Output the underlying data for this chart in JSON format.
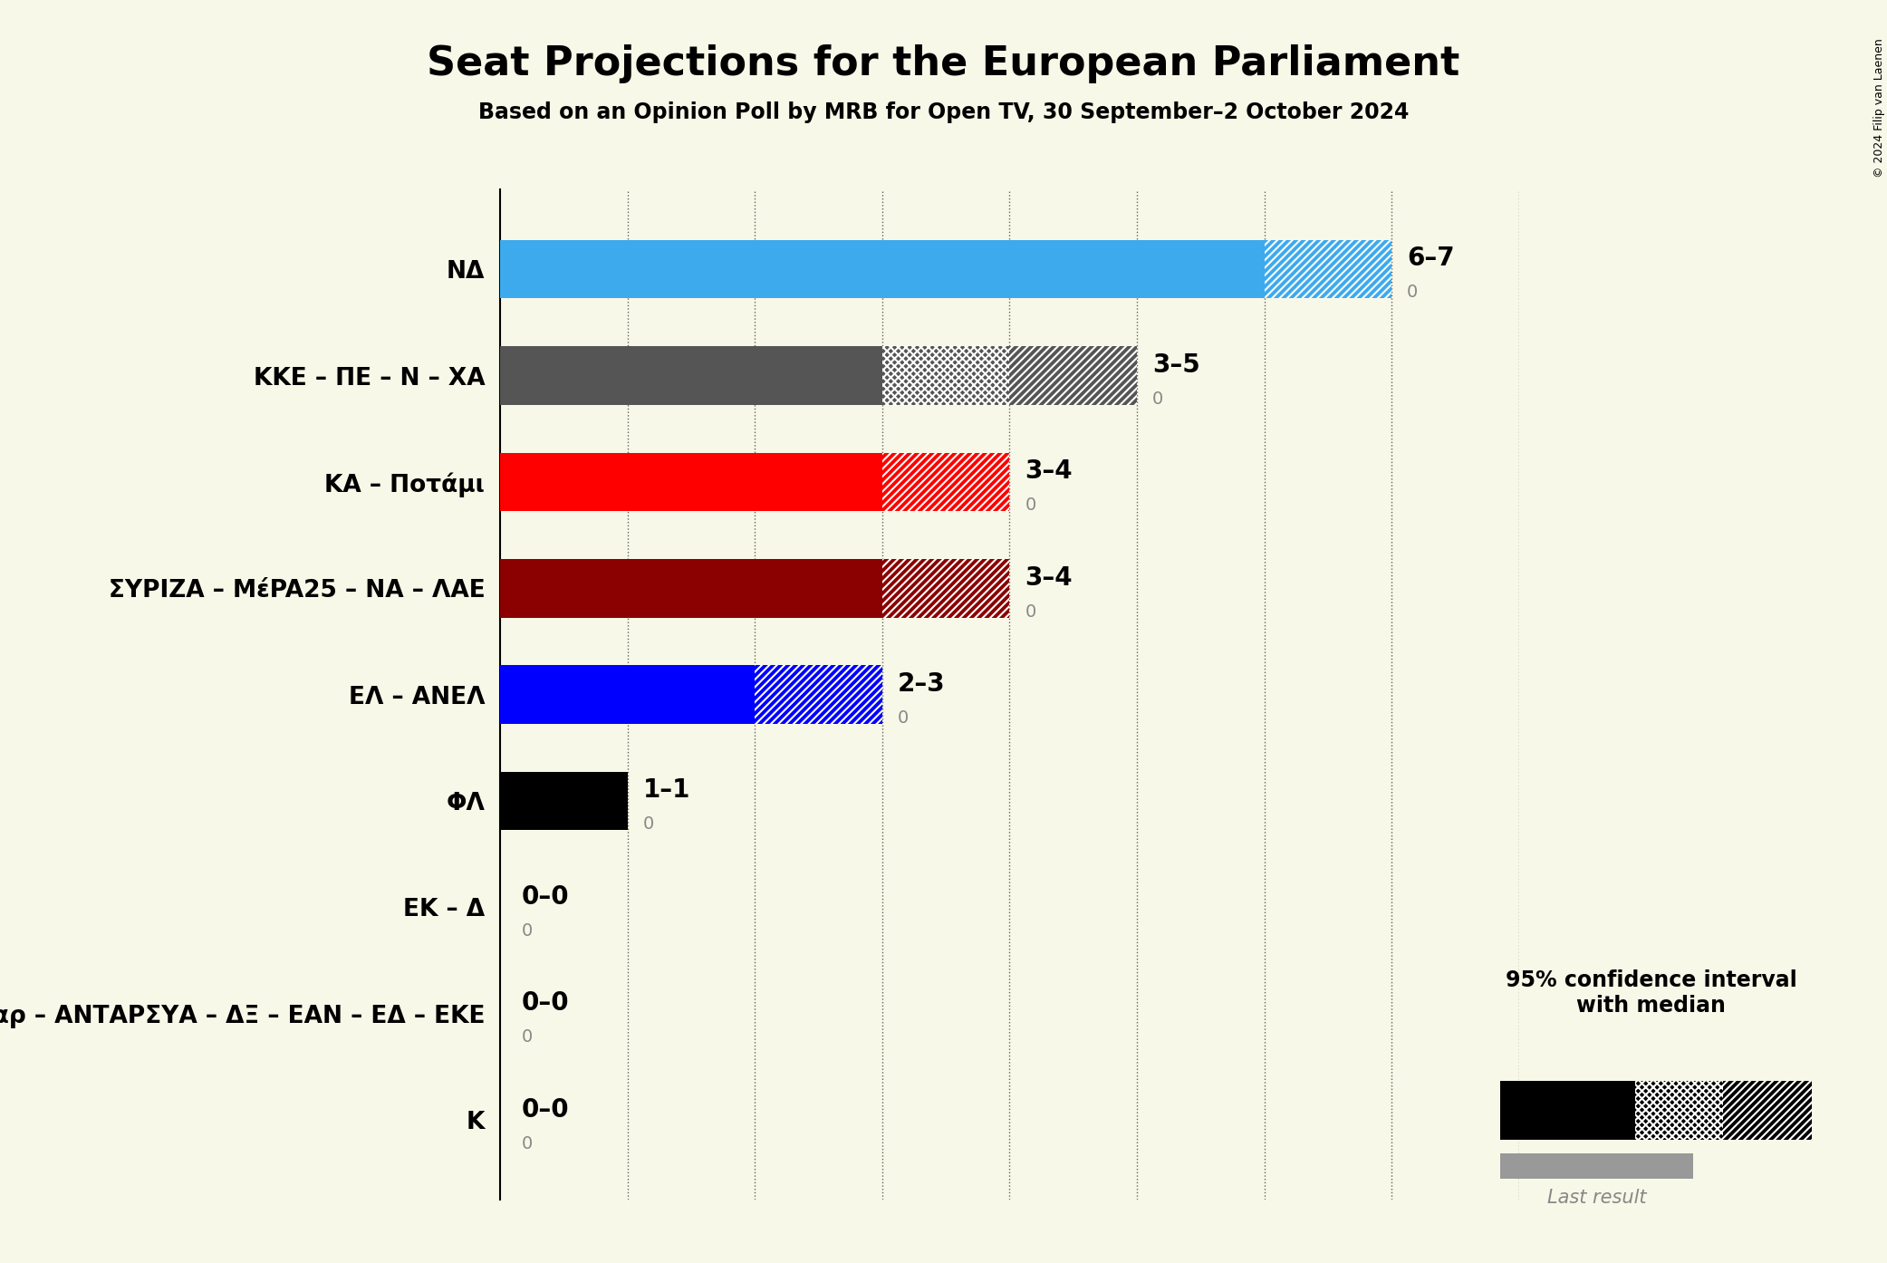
{
  "title": "Seat Projections for the European Parliament",
  "subtitle": "Based on an Opinion Poll by MRB for Open TV, 30 September–2 October 2024",
  "copyright": "© 2024 Filip van Laenen",
  "background_color": "#f8f8e8",
  "parties": [
    {
      "name": "NΔ",
      "low": 6,
      "median": 6,
      "high": 7,
      "last": 0,
      "color": "#3daaed"
    },
    {
      "name": "KKE – ΠΕ – N – XΑ",
      "low": 3,
      "median": 4,
      "high": 5,
      "last": 0,
      "color": "#555555"
    },
    {
      "name": "KΑ – Ποτάμι",
      "low": 3,
      "median": 3,
      "high": 4,
      "last": 0,
      "color": "#ff0000"
    },
    {
      "name": "ΣΥΡΙΖΑ – ΜέPA25 – NΑ – ΛΑΕ",
      "low": 3,
      "median": 3,
      "high": 4,
      "last": 0,
      "color": "#8b0000"
    },
    {
      "name": "ΕΛ – ΑΝΕΛ",
      "low": 2,
      "median": 2,
      "high": 3,
      "last": 0,
      "color": "#0000ff"
    },
    {
      "name": "ΦΛ",
      "low": 1,
      "median": 1,
      "high": 1,
      "last": 0,
      "color": "#000000"
    },
    {
      "name": "ΕK – Δ",
      "low": 0,
      "median": 0,
      "high": 0,
      "last": 0,
      "color": "#888888"
    },
    {
      "name": "Σπαρ – ΑΝΤΑΡΣΥΑ – ΔΞ – ΕΑΝ – ΕΔ – ΕKΕ",
      "low": 0,
      "median": 0,
      "high": 0,
      "last": 0,
      "color": "#888888"
    },
    {
      "name": "K",
      "low": 0,
      "median": 0,
      "high": 0,
      "last": 0,
      "color": "#888888"
    }
  ],
  "xlim": [
    0,
    8
  ],
  "xticks": [
    0,
    1,
    2,
    3,
    4,
    5,
    6,
    7,
    8
  ],
  "label_color": "#888888",
  "bar_height": 0.55,
  "hatch_color_cross": "#ffffff",
  "hatch_color_diag": "#ffffff",
  "last_result_color": "#999999"
}
